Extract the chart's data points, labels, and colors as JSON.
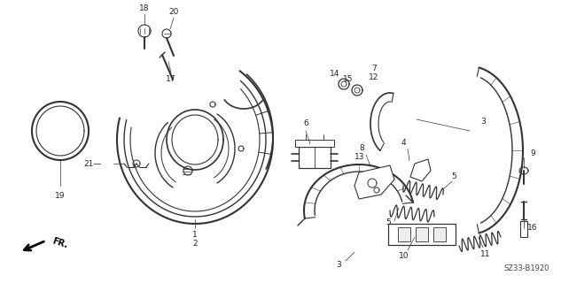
{
  "bg_color": "#ffffff",
  "fig_width": 6.33,
  "fig_height": 3.2,
  "dpi": 100,
  "diagram_code": "SZ33-B1920",
  "line_color": "#333333",
  "label_fontsize": 6.5,
  "diagram_fontsize": 6
}
